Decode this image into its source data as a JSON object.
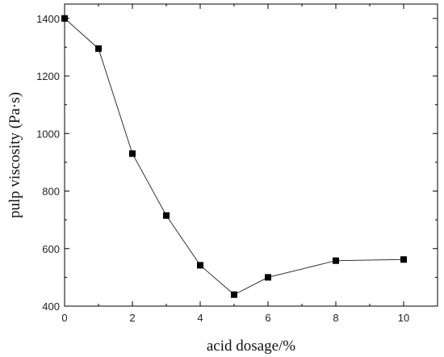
{
  "chart_data": {
    "type": "line",
    "title": "",
    "xlabel": "acid dosage/%",
    "ylabel": "pulp viscosity (Pa·s)",
    "xlim": [
      0,
      11
    ],
    "ylim": [
      400,
      1450
    ],
    "xticks": [
      0,
      2,
      4,
      6,
      8,
      10
    ],
    "yticks": [
      400,
      600,
      800,
      1000,
      1200,
      1400
    ],
    "xtick_labels": [
      "0",
      "2",
      "4",
      "6",
      "8",
      "10"
    ],
    "ytick_labels": [
      "400",
      "600",
      "800",
      "1000",
      "1200",
      "1400"
    ],
    "grid": false,
    "marker": "square",
    "series": [
      {
        "x": [
          0,
          1,
          2,
          3,
          4,
          5,
          6,
          8,
          10
        ],
        "y": [
          1400,
          1295,
          930,
          715,
          542,
          440,
          500,
          558,
          562
        ]
      }
    ]
  }
}
